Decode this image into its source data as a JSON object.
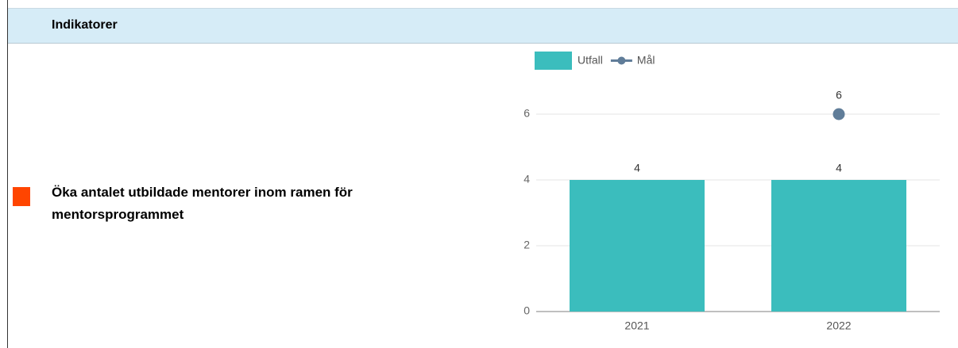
{
  "header": {
    "title": "Indikatorer"
  },
  "indicator": {
    "label": "Öka antalet utbildade mentorer inom ramen för mentorsprogrammet",
    "status_color": "#ff4500"
  },
  "chart_data": {
    "type": "bar",
    "categories": [
      "2021",
      "2022"
    ],
    "series": [
      {
        "name": "Utfall",
        "type": "bar",
        "color": "#3bbdbd",
        "values": [
          4,
          4
        ]
      },
      {
        "name": "Mål",
        "type": "line",
        "color": "#607d99",
        "values": [
          null,
          6
        ]
      }
    ],
    "ylim": [
      0,
      7
    ],
    "yticks": [
      0,
      2,
      4,
      6
    ],
    "grid": true
  }
}
